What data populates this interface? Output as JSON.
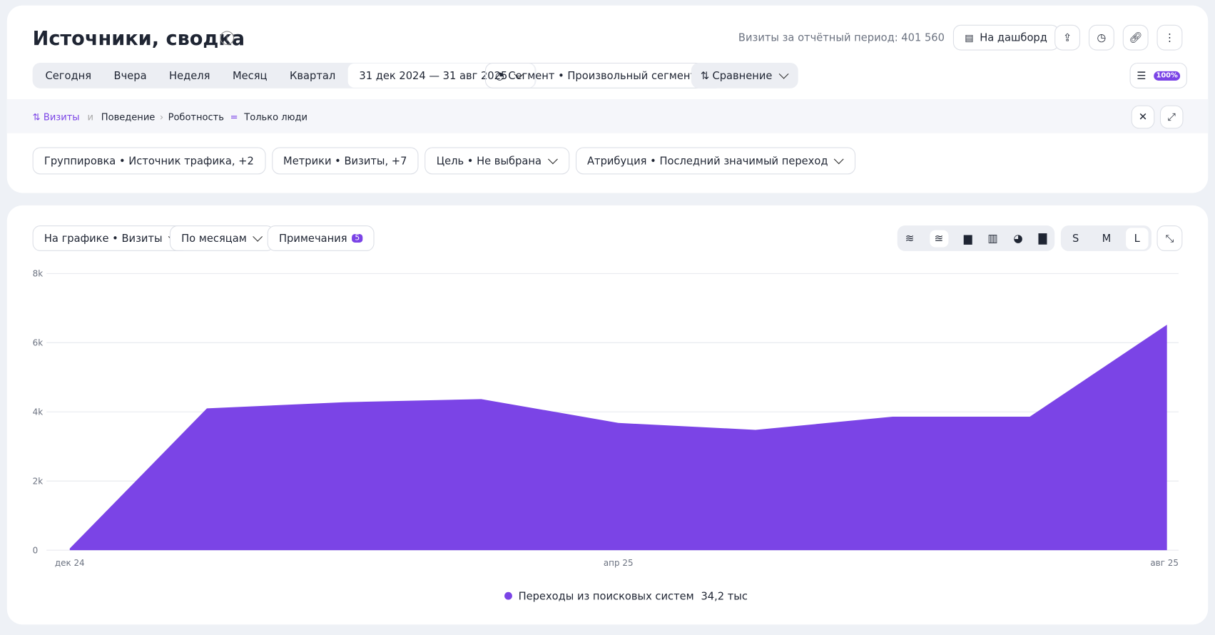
{
  "header": {
    "title": "Источники, сводка",
    "visits_label": "Визиты за отчётный период: 401 560",
    "dashboard_button": "На дашборд"
  },
  "toolbar": {
    "period_tabs": [
      "Сегодня",
      "Вчера",
      "Неделя",
      "Месяц",
      "Квартал"
    ],
    "date_range": "31 дек 2024 — 31 авг 2025",
    "segment": "Сегмент • Произвольный сегмент",
    "comparison": "Сравнение",
    "zoom_badge": "100%"
  },
  "filter": {
    "metric": "Визиты",
    "conjunction": "и",
    "path": [
      "Поведение",
      "Роботность"
    ],
    "operator": "=",
    "value": "Только люди"
  },
  "settings": [
    "Группировка • Источник трафика, +2",
    "Метрики • Визиты, +7",
    "Цель • Не выбрана",
    "Атрибуция • Последний значимый переход"
  ],
  "chart_controls": {
    "chart_metric": "На графике • Визиты",
    "period": "По месяцам",
    "notes": "Примечания",
    "notes_count": 5,
    "sizes": [
      "S",
      "M",
      "L"
    ]
  },
  "chart_data": {
    "type": "area",
    "categories": [
      "дек 24",
      null,
      null,
      null,
      "апр 25",
      null,
      null,
      null,
      "авг 25"
    ],
    "series": [
      {
        "name": "Переходы из поисковых систем",
        "legend_value": "34,2 тыс",
        "color": "#7b44e6",
        "values": [
          50,
          4100,
          4280,
          4370,
          3680,
          3480,
          3860,
          3860,
          6520
        ]
      }
    ],
    "ylim": [
      0,
      8000
    ],
    "yticks": [
      0,
      {
        "value": 2000,
        "label": "2k"
      },
      {
        "value": 4000,
        "label": "4k"
      },
      {
        "value": 6000,
        "label": "6k"
      },
      {
        "value": 8000,
        "label": "8k"
      }
    ],
    "grid": true
  }
}
